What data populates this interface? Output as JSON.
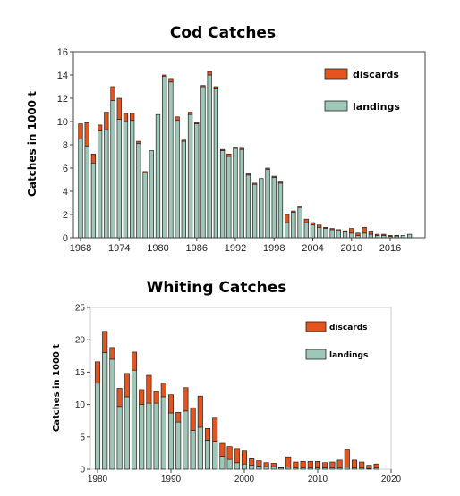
{
  "colors": {
    "landings": "#9ec7b8",
    "discards": "#e4541e",
    "edge": "#222222"
  },
  "chart_data": [
    {
      "type": "bar",
      "stacked": true,
      "title": "Cod Catches",
      "ylabel": "Catches in 1000 t",
      "ylim": [
        0,
        16
      ],
      "yticks": [
        0,
        2,
        4,
        6,
        8,
        10,
        12,
        14,
        16
      ],
      "xticks": [
        "1968",
        "1974",
        "1980",
        "1986",
        "1992",
        "1998",
        "2004",
        "2010",
        "2016"
      ],
      "legend_position": "top-right",
      "categories": [
        1968,
        1969,
        1970,
        1971,
        1972,
        1973,
        1974,
        1975,
        1976,
        1977,
        1978,
        1979,
        1980,
        1981,
        1982,
        1983,
        1984,
        1985,
        1986,
        1987,
        1988,
        1989,
        1990,
        1991,
        1992,
        1993,
        1994,
        1995,
        1996,
        1997,
        1998,
        1999,
        2000,
        2001,
        2002,
        2003,
        2004,
        2005,
        2006,
        2007,
        2008,
        2009,
        2010,
        2011,
        2012,
        2013,
        2014,
        2015,
        2016,
        2017,
        2018,
        2019
      ],
      "series": [
        {
          "name": "landings",
          "values": [
            8.5,
            7.9,
            6.4,
            9.2,
            9.3,
            11.8,
            10.2,
            10.0,
            10.1,
            8.1,
            5.6,
            7.5,
            10.6,
            13.9,
            13.4,
            10.1,
            8.3,
            10.6,
            9.8,
            13.0,
            14.0,
            12.8,
            7.5,
            7.0,
            7.7,
            7.6,
            5.4,
            4.6,
            5.1,
            5.9,
            5.2,
            4.7,
            1.3,
            2.2,
            2.6,
            1.3,
            1.1,
            0.9,
            0.8,
            0.7,
            0.6,
            0.5,
            0.4,
            0.2,
            0.4,
            0.3,
            0.2,
            0.2,
            0.1,
            0.15,
            0.2,
            0.3
          ]
        },
        {
          "name": "discards",
          "values": [
            1.3,
            2.0,
            0.8,
            0.5,
            1.5,
            1.2,
            1.8,
            0.7,
            0.6,
            0.2,
            0.1,
            0.0,
            0.0,
            0.1,
            0.3,
            0.3,
            0.1,
            0.2,
            0.1,
            0.1,
            0.3,
            0.2,
            0.1,
            0.2,
            0.1,
            0.1,
            0.1,
            0.1,
            0.0,
            0.1,
            0.1,
            0.1,
            0.7,
            0.1,
            0.1,
            0.3,
            0.2,
            0.2,
            0.1,
            0.1,
            0.1,
            0.1,
            0.4,
            0.2,
            0.5,
            0.2,
            0.1,
            0.1,
            0.1,
            0.05,
            0.0,
            0.0
          ]
        }
      ]
    },
    {
      "type": "bar",
      "stacked": true,
      "title": "Whiting Catches",
      "ylabel": "Catches in 1000 t",
      "ylim": [
        0,
        25
      ],
      "yticks": [
        0,
        5,
        10,
        15,
        20,
        25
      ],
      "xticks": [
        "1980",
        "1990",
        "2000",
        "2010",
        "2020"
      ],
      "xlim": [
        1977,
        2020
      ],
      "legend_position": "top-right",
      "categories": [
        1980,
        1981,
        1982,
        1983,
        1984,
        1985,
        1986,
        1987,
        1988,
        1989,
        1990,
        1991,
        1992,
        1993,
        1994,
        1995,
        1996,
        1997,
        1998,
        1999,
        2000,
        2001,
        2002,
        2003,
        2004,
        2005,
        2006,
        2007,
        2008,
        2009,
        2010,
        2011,
        2012,
        2013,
        2014,
        2015,
        2016,
        2017,
        2018
      ],
      "series": [
        {
          "name": "landings",
          "values": [
            13.3,
            18.0,
            17.0,
            9.7,
            11.2,
            15.3,
            10.0,
            10.2,
            10.2,
            11.2,
            8.7,
            7.3,
            9.0,
            6.0,
            6.5,
            4.5,
            4.2,
            2.0,
            1.5,
            1.0,
            0.8,
            0.6,
            0.5,
            0.4,
            0.4,
            0.2,
            0.3,
            0.2,
            0.2,
            0.2,
            0.2,
            0.2,
            0.2,
            0.2,
            0.3,
            0.2,
            0.2,
            0.1,
            0.2
          ]
        },
        {
          "name": "discards",
          "values": [
            3.3,
            3.3,
            1.8,
            2.8,
            3.6,
            2.8,
            2.3,
            4.3,
            1.8,
            2.1,
            2.8,
            1.5,
            3.6,
            3.5,
            4.8,
            1.8,
            3.7,
            2.0,
            2.0,
            2.2,
            2.0,
            1.0,
            0.8,
            0.6,
            0.5,
            0.1,
            1.6,
            0.9,
            1.0,
            1.0,
            1.0,
            0.8,
            0.9,
            1.2,
            2.8,
            1.2,
            0.9,
            0.5,
            0.6
          ]
        }
      ]
    }
  ]
}
